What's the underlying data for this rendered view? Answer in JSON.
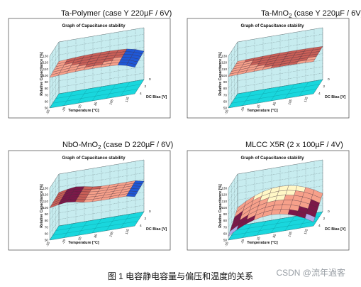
{
  "titles": {
    "ta_polymer": [
      "Ta-Polymer (case Y 220µF / 6V)"
    ],
    "ta_mno2": [
      "Ta-MnO",
      "2",
      " (case Y 220µF / 6V)"
    ],
    "nbo_mno2": [
      "NbO-MnO",
      "2",
      " (case D 220µF / 6V)"
    ],
    "mlcc": [
      "MLCC X5R (2 x 100µF / 4V)"
    ]
  },
  "figure_caption": "图 1  电容静电容量与偏压和温度的关系",
  "watermark": "CSDN @流年過客",
  "colors": {
    "wall": "#c7ecef",
    "floor": "#19d7dd",
    "grid": "#5a6b6e",
    "surface_light": "#f6a08a",
    "surface_mid": "#c85f57",
    "surface_dark": "#7b1848",
    "surface_blue": "#1f58d6",
    "cream": "#fff7c6",
    "lavender": "#b3a9e6"
  },
  "chart_data": [
    {
      "type": "surface",
      "panel": "ta_polymer",
      "title": "Graph of Capacitance stability",
      "xlabel": "Temperature [°C]",
      "ylabel": "DC Bias [V]",
      "zlabel": "Relative Capacitance [%]",
      "x_ticks": [
        "-55",
        "-25",
        "25",
        "85",
        "105",
        "125"
      ],
      "y_ticks": [
        "0",
        "2",
        "4"
      ],
      "z_ticks": [
        "50",
        "60",
        "70",
        "80",
        "90",
        "100",
        "110",
        "120",
        "130"
      ],
      "zlim": [
        50,
        130
      ],
      "grid": true
    },
    {
      "type": "surface",
      "panel": "ta_mno2",
      "title": "Graph of Capacitance stability",
      "xlabel": "Temperature [°C]",
      "ylabel": "DC Bias [V]",
      "zlabel": "Relative Capacitance [%]",
      "x_ticks": [
        "-55",
        "-25",
        "25",
        "85",
        "105",
        "125"
      ],
      "y_ticks": [
        "0",
        "2",
        "4"
      ],
      "z_ticks": [
        "50",
        "60",
        "70",
        "80",
        "90",
        "100",
        "110",
        "120",
        "130"
      ],
      "zlim": [
        50,
        130
      ],
      "grid": true
    },
    {
      "type": "surface",
      "panel": "nbo_mno2",
      "title": "Graph of Capacitance stability",
      "xlabel": "Temperature [°C]",
      "ylabel": "DC Bias [V]",
      "zlabel": "Relative Capacitance [%]",
      "x_ticks": [
        "-55",
        "-25",
        "25",
        "85",
        "105",
        "125"
      ],
      "y_ticks": [
        "0",
        "2",
        "4"
      ],
      "z_ticks": [
        "50",
        "60",
        "70",
        "80",
        "90",
        "100",
        "110",
        "120",
        "130"
      ],
      "zlim": [
        50,
        130
      ],
      "grid": true
    },
    {
      "type": "surface",
      "panel": "mlcc",
      "title": "Graph of Capacitance stability",
      "xlabel": "Temperature [°C]",
      "ylabel": "DC Bias [V]",
      "zlabel": "Relative Capacitance [%]",
      "x_ticks": [
        "-55",
        "-25",
        "25",
        "85",
        "105",
        "125"
      ],
      "y_ticks": [
        "0",
        "2",
        "4"
      ],
      "z_ticks": [
        "50",
        "60",
        "70",
        "80",
        "90",
        "100",
        "110",
        "120",
        "130"
      ],
      "zlim": [
        50,
        130
      ],
      "grid": true
    }
  ]
}
